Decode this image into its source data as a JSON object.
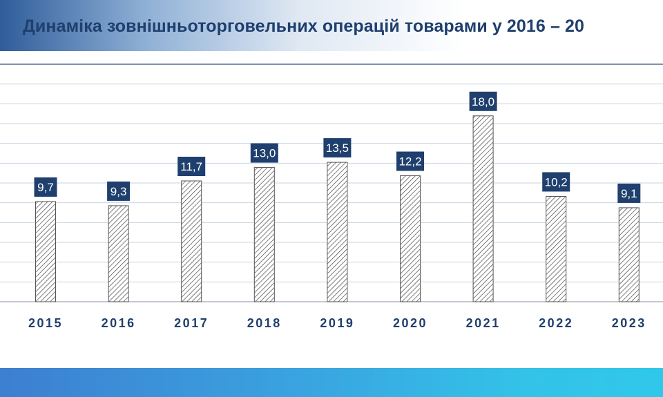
{
  "title": "Динаміка зовнішньоторговельних операцій товарами у 2016 – 20",
  "colors": {
    "title_text": "#1f3f6e",
    "label_box": "#1f3f6e",
    "label_text": "#ffffff",
    "bar_hatch": "#444444",
    "grid": "#c9d3e0",
    "bottom_band": "#39a8e2"
  },
  "chart_data": {
    "type": "bar",
    "categories": [
      "2015",
      "2016",
      "2017",
      "2018",
      "2019",
      "2020",
      "2021",
      "2022",
      "2023"
    ],
    "values": [
      9.7,
      9.3,
      11.7,
      13.0,
      13.5,
      12.2,
      18.0,
      10.2,
      9.1
    ],
    "value_labels": [
      "9,7",
      "9,3",
      "11,7",
      "13,0",
      "13,5",
      "12,2",
      "18,0",
      "10,2",
      "9,1"
    ],
    "ylim": [
      0,
      23
    ],
    "bar_fill": "diagonal-hatch",
    "grid": true,
    "legend": "none"
  }
}
